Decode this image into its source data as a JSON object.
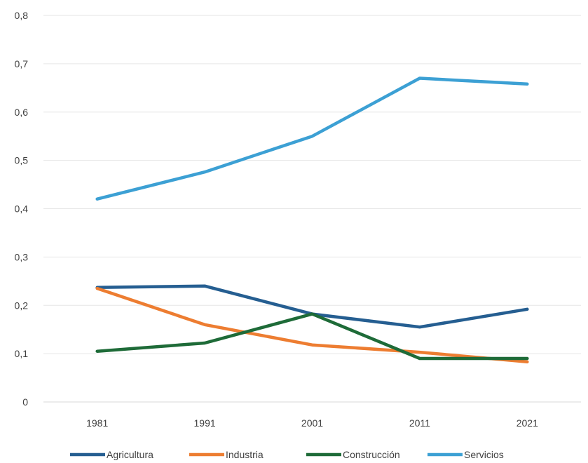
{
  "chart_data": {
    "type": "line",
    "title": "",
    "xlabel": "",
    "ylabel": "",
    "categories": [
      "1981",
      "1991",
      "2001",
      "2011",
      "2021"
    ],
    "ylim": [
      0,
      0.8
    ],
    "y_ticks": [
      "0",
      "0,1",
      "0,2",
      "0,3",
      "0,4",
      "0,5",
      "0,6",
      "0,7",
      "0,8"
    ],
    "y_tick_values": [
      0,
      0.1,
      0.2,
      0.3,
      0.4,
      0.5,
      0.6,
      0.7,
      0.8
    ],
    "grid": true,
    "legend_position": "bottom",
    "series": [
      {
        "name": "Agricultura",
        "color": "#255e91",
        "values": [
          0.237,
          0.24,
          0.182,
          0.155,
          0.192
        ]
      },
      {
        "name": "Industria",
        "color": "#ed7d31",
        "values": [
          0.235,
          0.16,
          0.118,
          0.103,
          0.083
        ]
      },
      {
        "name": "Construcción",
        "color": "#1e6b38",
        "values": [
          0.105,
          0.122,
          0.182,
          0.09,
          0.09
        ]
      },
      {
        "name": "Servicios",
        "color": "#3ca0d4",
        "values": [
          0.42,
          0.476,
          0.55,
          0.67,
          0.658
        ]
      }
    ]
  }
}
